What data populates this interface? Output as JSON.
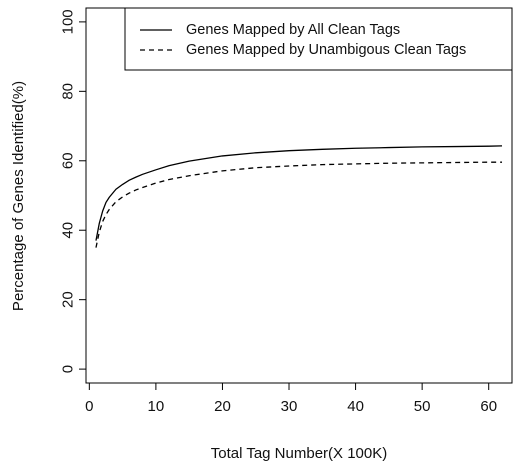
{
  "chart_data": {
    "type": "line",
    "title": "",
    "xlabel": "Total Tag Number(X 100K)",
    "ylabel": "Percentage of Genes Identified(%)",
    "xlim": [
      -0.5,
      63.5
    ],
    "ylim": [
      -4,
      104
    ],
    "x_ticks": [
      0,
      10,
      20,
      30,
      40,
      50,
      60
    ],
    "y_ticks": [
      0,
      20,
      40,
      60,
      80,
      100
    ],
    "grid": false,
    "legend_position": "top-right",
    "series": [
      {
        "name": "Genes Mapped by All Clean Tags",
        "style": "solid",
        "color": "#000000",
        "x": [
          1,
          1.5,
          2,
          2.5,
          3,
          4,
          5,
          6,
          7,
          8,
          10,
          12,
          15,
          20,
          25,
          30,
          35,
          40,
          45,
          50,
          55,
          60,
          62
        ],
        "y": [
          37,
          42,
          45.5,
          48,
          49.5,
          51.8,
          53.2,
          54.4,
          55.3,
          56.1,
          57.4,
          58.6,
          59.9,
          61.4,
          62.3,
          62.9,
          63.3,
          63.6,
          63.8,
          64,
          64.1,
          64.2,
          64.3
        ]
      },
      {
        "name": "Genes Mapped by Unambigous Clean Tags",
        "style": "dashed",
        "color": "#000000",
        "x": [
          1,
          1.5,
          2,
          2.5,
          3,
          4,
          5,
          6,
          7,
          8,
          10,
          12,
          15,
          20,
          25,
          30,
          35,
          40,
          45,
          50,
          55,
          60,
          62
        ],
        "y": [
          35,
          39.5,
          42.5,
          44.5,
          46,
          48.2,
          49.6,
          50.7,
          51.6,
          52.3,
          53.6,
          54.6,
          55.7,
          57.1,
          58,
          58.5,
          58.9,
          59.1,
          59.3,
          59.4,
          59.5,
          59.6,
          59.6
        ]
      }
    ]
  }
}
